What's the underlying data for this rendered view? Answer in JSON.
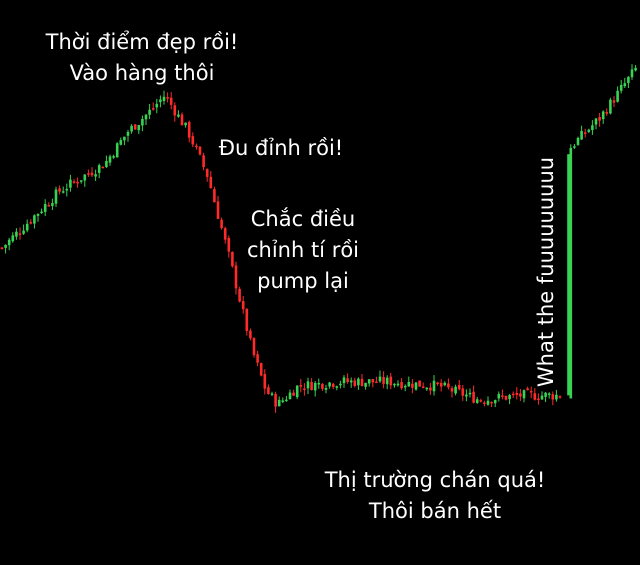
{
  "chart_data": {
    "type": "candlestick",
    "title": "",
    "xlabel": "",
    "ylabel": "",
    "grid": false,
    "colors": {
      "up": "#39d353",
      "down": "#ff2a2a",
      "background": "#000000"
    },
    "ylim": [
      0,
      100
    ],
    "trend": [
      {
        "x": 0,
        "y": 55
      },
      {
        "x": 60,
        "y": 68
      },
      {
        "x": 105,
        "y": 74
      },
      {
        "x": 128,
        "y": 81
      },
      {
        "x": 148,
        "y": 85
      },
      {
        "x": 165,
        "y": 89
      },
      {
        "x": 188,
        "y": 81
      },
      {
        "x": 208,
        "y": 71
      },
      {
        "x": 232,
        "y": 51
      },
      {
        "x": 252,
        "y": 33
      },
      {
        "x": 266,
        "y": 24
      },
      {
        "x": 278,
        "y": 21
      },
      {
        "x": 298,
        "y": 25
      },
      {
        "x": 340,
        "y": 26
      },
      {
        "x": 390,
        "y": 26
      },
      {
        "x": 440,
        "y": 25
      },
      {
        "x": 480,
        "y": 22
      },
      {
        "x": 520,
        "y": 23
      },
      {
        "x": 566,
        "y": 23
      },
      {
        "x": 568,
        "y": 77
      },
      {
        "x": 600,
        "y": 84
      },
      {
        "x": 640,
        "y": 96
      }
    ],
    "jump": {
      "from": 23,
      "to": 76
    },
    "annotations": [
      {
        "id": "entry",
        "lines": [
          "Thời điểm đẹp rồi!",
          "Vào hàng thôi"
        ]
      },
      {
        "id": "peak",
        "lines": [
          "Đu đỉnh rồi!"
        ]
      },
      {
        "id": "pump",
        "lines": [
          "Chắc điều",
          "chỉnh tí rồi",
          "pump lại"
        ]
      },
      {
        "id": "wtf",
        "lines": [
          "What the fuuuuuuuuu"
        ]
      },
      {
        "id": "bored",
        "lines": [
          "Thị trường chán quá!",
          "Thôi bán hết"
        ]
      }
    ]
  }
}
